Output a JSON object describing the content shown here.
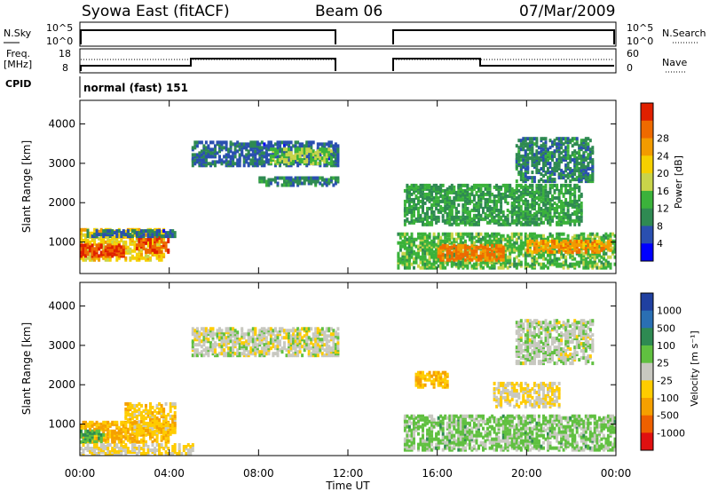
{
  "header": {
    "site": "Syowa East (fitACF)",
    "beam": "Beam 06",
    "date": "07/Mar/2009"
  },
  "top_panels": {
    "nsky": {
      "left_label": "N.Sky",
      "ticks": [
        "10^5",
        "10^0"
      ],
      "right_label": "N.Search",
      "right_ticks": [
        "10^5",
        "10^0"
      ]
    },
    "freq": {
      "left_label_1": "Freq.",
      "left_label_2": "[MHz]",
      "ticks": [
        "18",
        "8"
      ],
      "right_label": "Nave",
      "right_ticks": [
        "60",
        "0"
      ]
    },
    "cpid": {
      "label": "CPID",
      "value": "normal (fast) 151"
    }
  },
  "x_axis": {
    "label": "Time UT",
    "ticks": [
      "00:00",
      "04:00",
      "08:00",
      "12:00",
      "16:00",
      "20:00",
      "00:00"
    ]
  },
  "colors": {
    "power": [
      "#0000ff",
      "#2a4fb0",
      "#2f8a52",
      "#3bb23b",
      "#c9d44a",
      "#f5d000",
      "#f29b00",
      "#ee6a00",
      "#e02000"
    ],
    "velocity": [
      "#2040a0",
      "#2a6fb3",
      "#2e8a52",
      "#60c040",
      "#c8c8c0",
      "#ffcc00",
      "#f5a000",
      "#ee6000",
      "#e01010"
    ]
  },
  "chart_data": [
    {
      "type": "heatmap",
      "name": "power",
      "ylabel": "Slant Range [km]",
      "xlabel": "Time UT",
      "x_range_hours": [
        0,
        24
      ],
      "ylim": [
        200,
        4600
      ],
      "y_ticks": [
        1000,
        2000,
        3000,
        4000
      ],
      "colorbar": {
        "label": "Power [dB]",
        "ticks": [
          "4",
          "8",
          "12",
          "16",
          "20",
          "24",
          "28"
        ],
        "range": [
          0,
          30
        ]
      },
      "data_gap_hours": [
        11.5,
        14.0
      ],
      "regions": [
        {
          "t": [
            0.0,
            3.8
          ],
          "r": [
            500,
            1300
          ],
          "level": 18
        },
        {
          "t": [
            0.0,
            2.0
          ],
          "r": [
            600,
            900
          ],
          "level": 27
        },
        {
          "t": [
            2.5,
            4.0
          ],
          "r": [
            700,
            1100
          ],
          "level": 26
        },
        {
          "t": [
            0.3,
            4.3
          ],
          "r": [
            1100,
            1250
          ],
          "level": 6
        },
        {
          "t": [
            5.0,
            11.5
          ],
          "r": [
            2900,
            3500
          ],
          "level": 6
        },
        {
          "t": [
            8.5,
            11.2
          ],
          "r": [
            2950,
            3350
          ],
          "level": 13
        },
        {
          "t": [
            8.0,
            11.5
          ],
          "r": [
            2400,
            2600
          ],
          "level": 8
        },
        {
          "t": [
            14.2,
            24.0
          ],
          "r": [
            300,
            1200
          ],
          "level": 12
        },
        {
          "t": [
            16.0,
            19.0
          ],
          "r": [
            500,
            900
          ],
          "level": 24
        },
        {
          "t": [
            20.0,
            23.8
          ],
          "r": [
            700,
            1000
          ],
          "level": 22
        },
        {
          "t": [
            14.5,
            22.5
          ],
          "r": [
            1400,
            2400
          ],
          "level": 10
        },
        {
          "t": [
            19.5,
            23.0
          ],
          "r": [
            2500,
            3600
          ],
          "level": 8
        }
      ]
    },
    {
      "type": "heatmap",
      "name": "velocity",
      "ylabel": "Slant Range [km]",
      "xlabel": "Time UT",
      "x_range_hours": [
        0,
        24
      ],
      "ylim": [
        200,
        4600
      ],
      "y_ticks": [
        1000,
        2000,
        3000,
        4000
      ],
      "colorbar": {
        "label": "Velocity [m s⁻¹]",
        "ticks": [
          "1000",
          "500",
          "100",
          "25",
          "-25",
          "-100",
          "-500",
          "-1000"
        ],
        "range": [
          -1200,
          1200
        ]
      },
      "data_gap_hours": [
        11.5,
        14.0
      ],
      "regions": [
        {
          "t": [
            0.0,
            4.0
          ],
          "r": [
            500,
            1000
          ],
          "level": -400
        },
        {
          "t": [
            2.0,
            4.3
          ],
          "r": [
            700,
            1500
          ],
          "level": -300
        },
        {
          "t": [
            0.0,
            1.0
          ],
          "r": [
            500,
            800
          ],
          "level": 400
        },
        {
          "t": [
            0.0,
            5.0
          ],
          "r": [
            200,
            450
          ],
          "level": -120
        },
        {
          "t": [
            5.0,
            11.5
          ],
          "r": [
            2700,
            3400
          ],
          "level": 0
        },
        {
          "t": [
            14.5,
            24.0
          ],
          "r": [
            300,
            1200
          ],
          "level": 200
        },
        {
          "t": [
            15.0,
            16.5
          ],
          "r": [
            1900,
            2300
          ],
          "level": -400
        },
        {
          "t": [
            18.5,
            21.5
          ],
          "r": [
            1400,
            2000
          ],
          "level": -150
        },
        {
          "t": [
            19.5,
            23.0
          ],
          "r": [
            2500,
            3600
          ],
          "level": 60
        }
      ]
    }
  ]
}
